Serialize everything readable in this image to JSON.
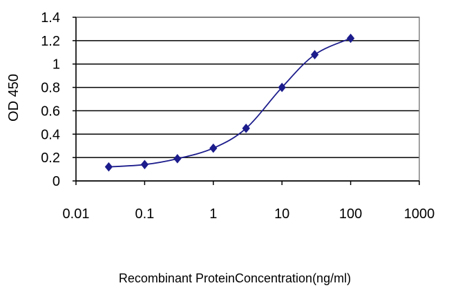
{
  "chart_data": {
    "type": "line",
    "title": "",
    "xlabel": "Recombinant ProteinConcentration(ng/ml)",
    "ylabel": "OD 450",
    "x_scale": "log",
    "xlim": [
      0.01,
      1000
    ],
    "ylim": [
      0,
      1.4
    ],
    "x_ticks": [
      "0.01",
      "0.1",
      "1",
      "10",
      "100",
      "1000"
    ],
    "y_ticks": [
      "0",
      "0.2",
      "0.4",
      "0.6",
      "0.8",
      "1",
      "1.2",
      "1.4"
    ],
    "grid": "horizontal",
    "legend": "none",
    "series": [
      {
        "color": "#1c1c8c",
        "marker": "diamond",
        "x": [
          0.03,
          0.1,
          0.3,
          1,
          3,
          10,
          30,
          100
        ],
        "y": [
          0.12,
          0.14,
          0.19,
          0.28,
          0.45,
          0.8,
          1.08,
          1.22
        ]
      }
    ]
  }
}
